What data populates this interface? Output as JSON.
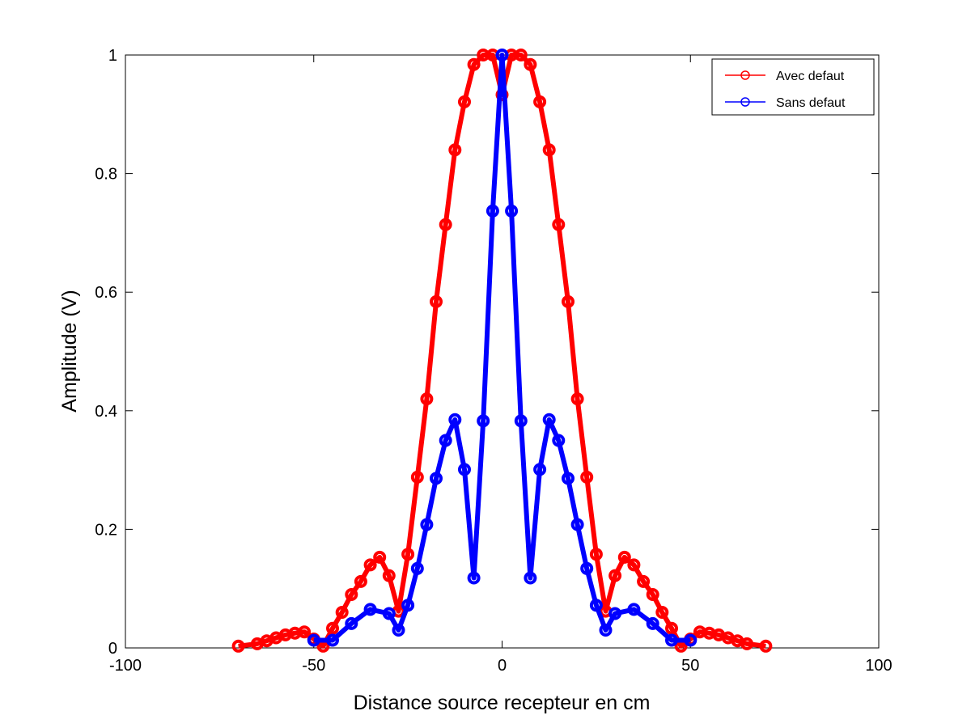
{
  "chart_data": {
    "type": "line",
    "xlabel": "Distance source recepteur en cm",
    "ylabel": "Amplitude (V)",
    "xlim": [
      -100,
      100
    ],
    "ylim": [
      0,
      1
    ],
    "xticks": [
      -100,
      -50,
      0,
      50,
      100
    ],
    "yticks": [
      0,
      0.2,
      0.4,
      0.6,
      0.8,
      1
    ],
    "xtick_labels": [
      "-100",
      "-50",
      "0",
      "50",
      "100"
    ],
    "ytick_labels": [
      "0",
      "0.2",
      "0.4",
      "0.6",
      "0.8",
      "1"
    ],
    "grid": false,
    "legend_position": "top-right",
    "series": [
      {
        "name": "Avec defaut",
        "color": "#ff0000",
        "marker": "circle",
        "x": [
          -70,
          -65,
          -62.5,
          -60,
          -57.5,
          -55,
          -52.5,
          -50,
          -47.5,
          -45,
          -42.5,
          -40,
          -37.5,
          -35,
          -32.5,
          -30,
          -27.5,
          -25,
          -22.5,
          -20,
          -17.5,
          -15,
          -12.5,
          -10,
          -7.5,
          -5,
          -2.5,
          0,
          2.5,
          5,
          7.5,
          10,
          12.5,
          15,
          17.5,
          20,
          22.5,
          25,
          27.5,
          30,
          32.5,
          35,
          37.5,
          40,
          42.5,
          45,
          47.5,
          50,
          52.5,
          55,
          57.5,
          60,
          62.5,
          65,
          70
        ],
        "y": [
          0.003,
          0.007,
          0.012,
          0.017,
          0.022,
          0.025,
          0.027,
          0.015,
          0.003,
          0.033,
          0.06,
          0.09,
          0.112,
          0.14,
          0.153,
          0.122,
          0.062,
          0.158,
          0.288,
          0.42,
          0.584,
          0.714,
          0.84,
          0.921,
          0.984,
          1.0,
          1.0,
          0.933,
          1.0,
          1.0,
          0.984,
          0.921,
          0.84,
          0.714,
          0.584,
          0.42,
          0.288,
          0.158,
          0.062,
          0.122,
          0.153,
          0.14,
          0.112,
          0.09,
          0.06,
          0.033,
          0.003,
          0.015,
          0.027,
          0.025,
          0.022,
          0.017,
          0.012,
          0.007,
          0.003
        ]
      },
      {
        "name": "Sans defaut",
        "color": "#0000ff",
        "marker": "circle",
        "x": [
          -50,
          -45,
          -40,
          -35,
          -30,
          -27.5,
          -25,
          -22.5,
          -20,
          -17.5,
          -15,
          -12.5,
          -10,
          -7.5,
          -5,
          -2.5,
          0,
          2.5,
          5,
          7.5,
          10,
          12.5,
          15,
          17.5,
          20,
          22.5,
          25,
          27.5,
          30,
          35,
          40,
          45,
          50
        ],
        "y": [
          0.013,
          0.013,
          0.041,
          0.065,
          0.058,
          0.03,
          0.072,
          0.134,
          0.208,
          0.286,
          0.35,
          0.385,
          0.301,
          0.118,
          0.383,
          0.737,
          1.0,
          0.737,
          0.383,
          0.118,
          0.301,
          0.385,
          0.35,
          0.286,
          0.208,
          0.134,
          0.072,
          0.03,
          0.058,
          0.065,
          0.041,
          0.013,
          0.013
        ]
      }
    ]
  }
}
